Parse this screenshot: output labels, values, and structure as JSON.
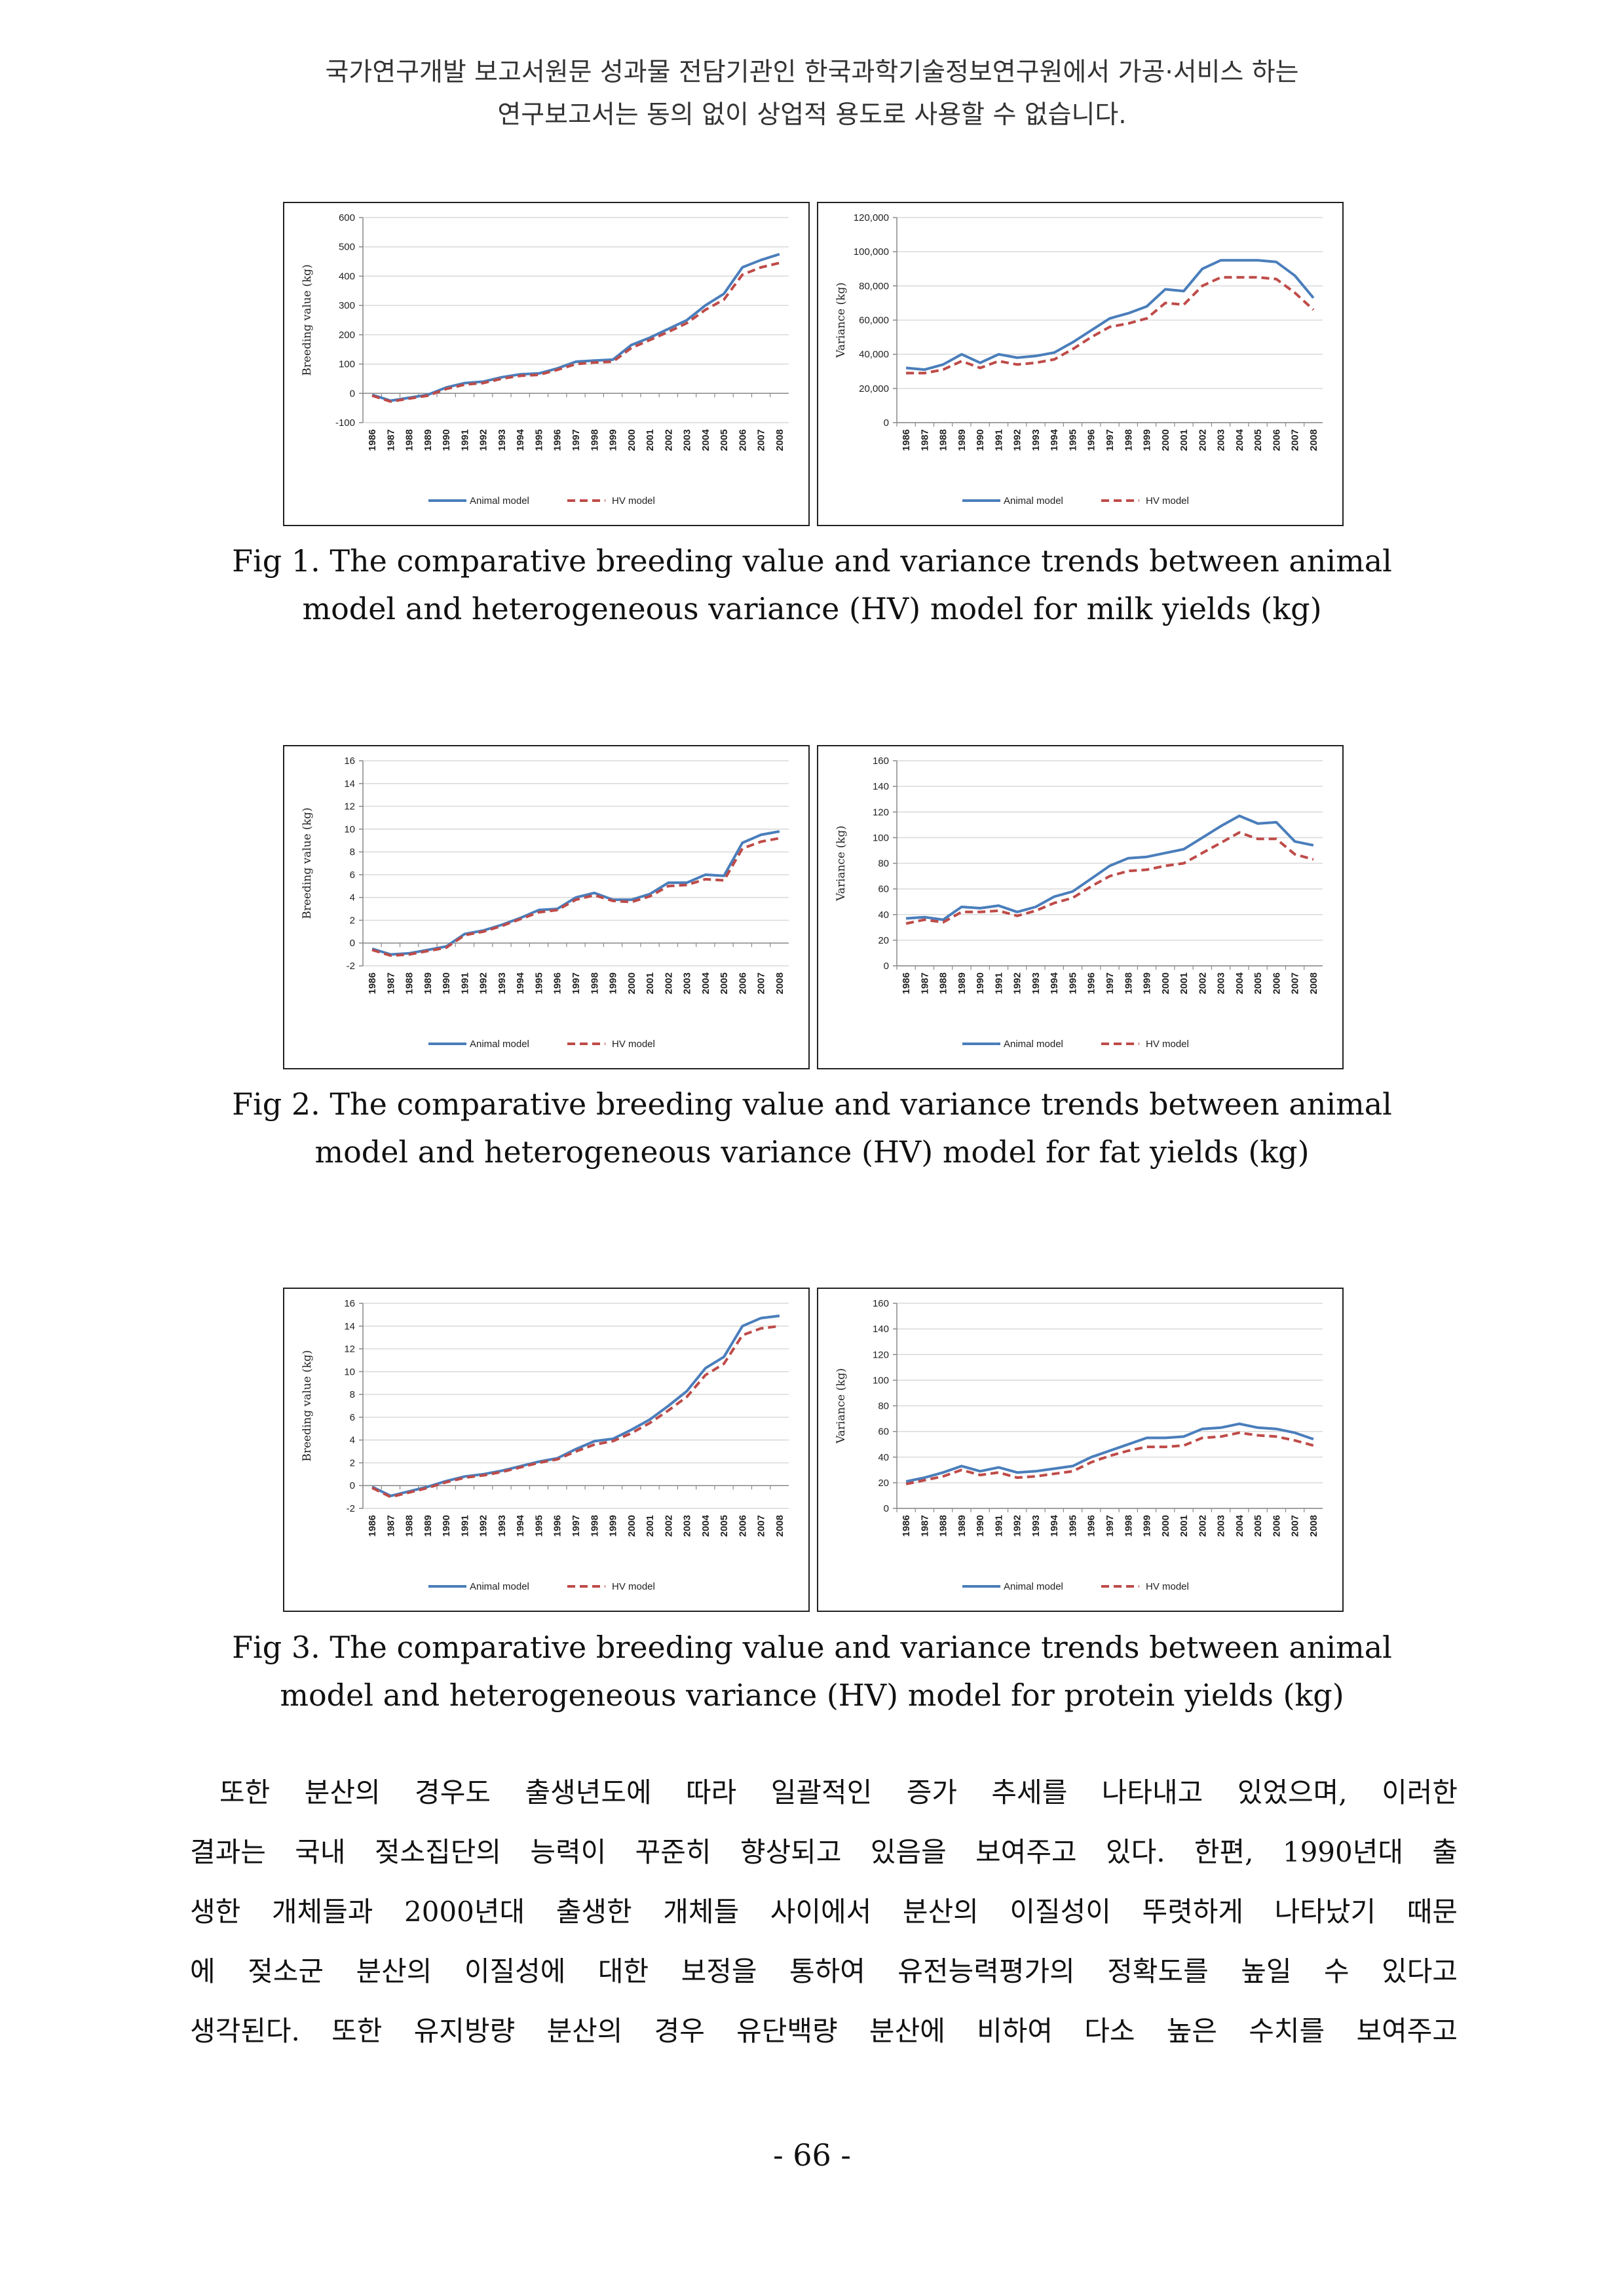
{
  "header": {
    "line1": "국가연구개발 보고서원문 성과물 전담기관인 한국과학기술정보연구원에서 가공·서비스 하는",
    "line2": "연구보고서는 동의 없이 상업적 용도로 사용할 수 없습니다."
  },
  "figures": [
    {
      "caption_line1": "Fig 1. The comparative breeding value and variance trends between animal",
      "caption_line2": "model and heterogeneous variance (HV) model for milk yields (kg)"
    },
    {
      "caption_line1": "Fig 2. The comparative breeding value and variance trends between animal",
      "caption_line2": "model and heterogeneous variance (HV) model for fat yields (kg)"
    },
    {
      "caption_line1": "Fig 3. The comparative breeding value and variance trends between animal",
      "caption_line2": "model and heterogeneous variance (HV) model for protein yields (kg)"
    }
  ],
  "legend": {
    "animal": "Animal model",
    "hv": "HV model"
  },
  "colors": {
    "animal": "#4a7ebb",
    "hv": "#be4b48",
    "grid": "#d9d9d9"
  },
  "chart_data": [
    {
      "type": "line",
      "ylabel": "Breeding value (kg)",
      "ylim": [
        -100,
        600
      ],
      "yticks": [
        -100,
        0,
        100,
        200,
        300,
        400,
        500,
        600
      ],
      "ytick_labels": [
        "-100",
        "0",
        "100",
        "200",
        "300",
        "400",
        "500",
        "600"
      ],
      "categories": [
        "1986",
        "1987",
        "1988",
        "1989",
        "1990",
        "1991",
        "1992",
        "1993",
        "1994",
        "1995",
        "1996",
        "1997",
        "1998",
        "1999",
        "2000",
        "2001",
        "2002",
        "2003",
        "2004",
        "2005",
        "2006",
        "2007",
        "2008"
      ],
      "series": [
        {
          "name": "Animal model",
          "values": [
            -5,
            -25,
            -15,
            -5,
            20,
            35,
            40,
            55,
            65,
            68,
            85,
            108,
            112,
            115,
            165,
            190,
            220,
            250,
            300,
            340,
            430,
            455,
            475
          ]
        },
        {
          "name": "HV model",
          "values": [
            -8,
            -28,
            -18,
            -8,
            15,
            30,
            35,
            50,
            60,
            63,
            80,
            100,
            105,
            108,
            155,
            182,
            210,
            240,
            285,
            320,
            405,
            430,
            445
          ]
        }
      ]
    },
    {
      "type": "line",
      "ylabel": "Variance (kg)",
      "ylim": [
        0,
        120000
      ],
      "yticks": [
        0,
        20000,
        40000,
        60000,
        80000,
        100000,
        120000
      ],
      "ytick_labels": [
        "0",
        "20,000",
        "40,000",
        "60,000",
        "80,000",
        "100,000",
        "120,000"
      ],
      "categories": [
        "1986",
        "1987",
        "1988",
        "1989",
        "1990",
        "1991",
        "1992",
        "1993",
        "1994",
        "1995",
        "1996",
        "1997",
        "1998",
        "1999",
        "2000",
        "2001",
        "2002",
        "2003",
        "2004",
        "2005",
        "2006",
        "2007",
        "2008"
      ],
      "series": [
        {
          "name": "Animal model",
          "values": [
            32000,
            31000,
            34000,
            40000,
            35000,
            40000,
            38000,
            39000,
            41000,
            47000,
            54000,
            61000,
            64000,
            68000,
            78000,
            77000,
            90000,
            95000,
            95000,
            95000,
            94000,
            86000,
            73000
          ]
        },
        {
          "name": "HV model",
          "values": [
            29000,
            29000,
            31000,
            36000,
            32000,
            36000,
            34000,
            35000,
            37000,
            43000,
            50000,
            56000,
            58000,
            61000,
            70000,
            69000,
            80000,
            85000,
            85000,
            85000,
            84000,
            76000,
            66000
          ]
        }
      ]
    },
    {
      "type": "line",
      "ylabel": "Breeding value (kg)",
      "ylim": [
        -2,
        16
      ],
      "yticks": [
        -2,
        0,
        2,
        4,
        6,
        8,
        10,
        12,
        14,
        16
      ],
      "ytick_labels": [
        "-2",
        "0",
        "2",
        "4",
        "6",
        "8",
        "10",
        "12",
        "14",
        "16"
      ],
      "categories": [
        "1986",
        "1987",
        "1988",
        "1989",
        "1990",
        "1991",
        "1992",
        "1993",
        "1994",
        "1995",
        "1996",
        "1997",
        "1998",
        "1999",
        "2000",
        "2001",
        "2002",
        "2003",
        "2004",
        "2005",
        "2006",
        "2007",
        "2008"
      ],
      "series": [
        {
          "name": "Animal model",
          "values": [
            -0.5,
            -1,
            -0.9,
            -0.6,
            -0.3,
            0.8,
            1.1,
            1.6,
            2.2,
            2.9,
            3.0,
            4.0,
            4.4,
            3.8,
            3.8,
            4.3,
            5.3,
            5.3,
            6.0,
            5.9,
            8.8,
            9.5,
            9.8
          ]
        },
        {
          "name": "HV model",
          "values": [
            -0.6,
            -1.1,
            -1.0,
            -0.7,
            -0.4,
            0.7,
            1.0,
            1.5,
            2.1,
            2.7,
            2.9,
            3.8,
            4.2,
            3.7,
            3.6,
            4.1,
            5.0,
            5.1,
            5.6,
            5.5,
            8.3,
            8.9,
            9.2
          ]
        }
      ]
    },
    {
      "type": "line",
      "ylabel": "Variance (kg)",
      "ylim": [
        0,
        160
      ],
      "yticks": [
        0,
        20,
        40,
        60,
        80,
        100,
        120,
        140,
        160
      ],
      "ytick_labels": [
        "0",
        "20",
        "40",
        "60",
        "80",
        "100",
        "120",
        "140",
        "160"
      ],
      "categories": [
        "1986",
        "1987",
        "1988",
        "1989",
        "1990",
        "1991",
        "1992",
        "1993",
        "1994",
        "1995",
        "1996",
        "1997",
        "1998",
        "1999",
        "2000",
        "2001",
        "2002",
        "2003",
        "2004",
        "2005",
        "2006",
        "2007",
        "2008"
      ],
      "series": [
        {
          "name": "Animal model",
          "values": [
            37,
            38,
            36,
            46,
            45,
            47,
            42,
            46,
            54,
            58,
            68,
            78,
            84,
            85,
            88,
            91,
            100,
            109,
            117,
            111,
            112,
            97,
            94
          ]
        },
        {
          "name": "HV model",
          "values": [
            33,
            36,
            34,
            42,
            42,
            43,
            39,
            43,
            49,
            53,
            62,
            70,
            74,
            75,
            78,
            80,
            88,
            96,
            104,
            99,
            99,
            87,
            83
          ]
        }
      ]
    },
    {
      "type": "line",
      "ylabel": "Breeding value (kg)",
      "ylim": [
        -2,
        16
      ],
      "yticks": [
        -2,
        0,
        2,
        4,
        6,
        8,
        10,
        12,
        14,
        16
      ],
      "ytick_labels": [
        "-2",
        "0",
        "2",
        "4",
        "6",
        "8",
        "10",
        "12",
        "14",
        "16"
      ],
      "categories": [
        "1986",
        "1987",
        "1988",
        "1989",
        "1990",
        "1991",
        "1992",
        "1993",
        "1994",
        "1995",
        "1996",
        "1997",
        "1998",
        "1999",
        "2000",
        "2001",
        "2002",
        "2003",
        "2004",
        "2005",
        "2006",
        "2007",
        "2008"
      ],
      "series": [
        {
          "name": "Animal model",
          "values": [
            -0.1,
            -0.9,
            -0.5,
            -0.1,
            0.4,
            0.8,
            1.0,
            1.3,
            1.7,
            2.1,
            2.4,
            3.2,
            3.9,
            4.1,
            4.9,
            5.8,
            7.0,
            8.3,
            10.3,
            11.3,
            14.0,
            14.7,
            14.9
          ]
        },
        {
          "name": "HV model",
          "values": [
            -0.2,
            -1.0,
            -0.6,
            -0.2,
            0.3,
            0.7,
            0.9,
            1.2,
            1.6,
            2.0,
            2.3,
            3.0,
            3.6,
            3.9,
            4.6,
            5.5,
            6.6,
            7.8,
            9.7,
            10.7,
            13.2,
            13.8,
            14.0
          ]
        }
      ]
    },
    {
      "type": "line",
      "ylabel": "Variance (kg)",
      "ylim": [
        0,
        160
      ],
      "yticks": [
        0,
        20,
        40,
        60,
        80,
        100,
        120,
        140,
        160
      ],
      "ytick_labels": [
        "0",
        "20",
        "40",
        "60",
        "80",
        "100",
        "120",
        "140",
        "160"
      ],
      "categories": [
        "1986",
        "1987",
        "1988",
        "1989",
        "1990",
        "1991",
        "1992",
        "1993",
        "1994",
        "1995",
        "1996",
        "1997",
        "1998",
        "1999",
        "2000",
        "2001",
        "2002",
        "2003",
        "2004",
        "2005",
        "2006",
        "2007",
        "2008"
      ],
      "series": [
        {
          "name": "Animal model",
          "values": [
            21,
            24,
            28,
            33,
            29,
            32,
            28,
            29,
            31,
            33,
            40,
            45,
            50,
            55,
            55,
            56,
            62,
            63,
            66,
            63,
            62,
            59,
            54
          ]
        },
        {
          "name": "HV model",
          "values": [
            19,
            22,
            25,
            30,
            26,
            28,
            24,
            25,
            27,
            29,
            36,
            41,
            45,
            48,
            48,
            49,
            55,
            56,
            59,
            57,
            56,
            53,
            49
          ]
        }
      ]
    }
  ],
  "body": [
    "또한 분산의 경우도 출생년도에 따라 일괄적인 증가 추세를 나타내고 있었으며, 이러한",
    "결과는 국내 젖소집단의 능력이 꾸준히 향상되고 있음을 보여주고 있다. 한편, 1990년대 출",
    "생한 개체들과 2000년대 출생한 개체들 사이에서 분산의 이질성이 뚜렷하게 나타났기 때문",
    "에 젖소군 분산의 이질성에 대한 보정을 통하여 유전능력평가의 정확도를 높일 수 있다고",
    "생각된다. 또한 유지방량 분산의 경우 유단백량 분산에 비하여 다소 높은 수치를 보여주고"
  ],
  "page_number": "- 66 -"
}
